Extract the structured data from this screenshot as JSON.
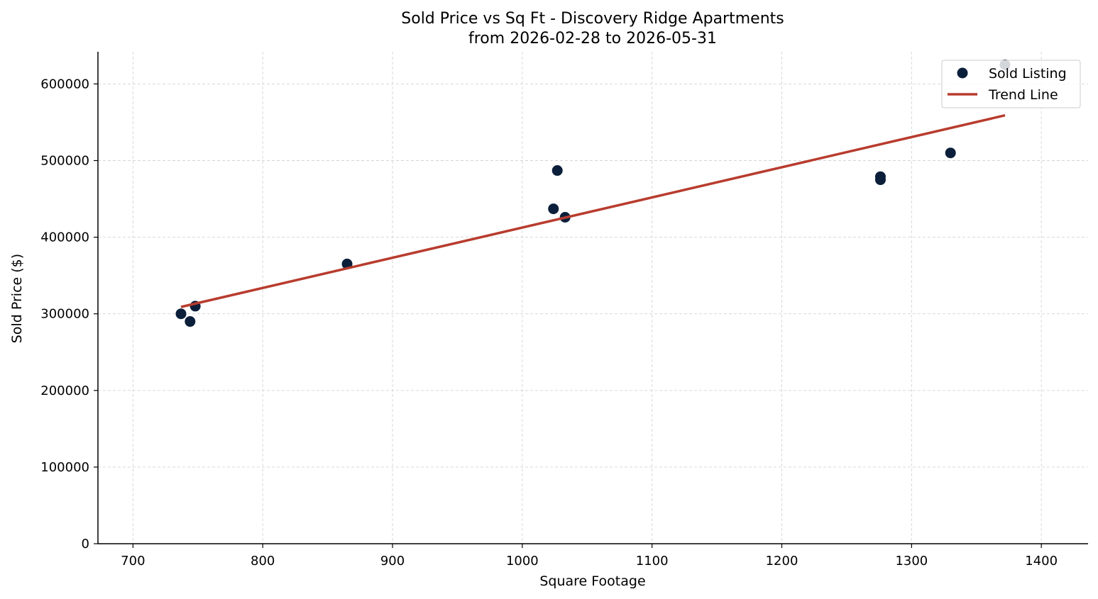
{
  "chart_data": {
    "type": "scatter",
    "title": "Sold Price vs Sq Ft - Discovery Ridge Apartments",
    "subtitle": "from 2026-02-28 to 2026-05-31",
    "xlabel": "Square Footage",
    "ylabel": "Sold Price ($)",
    "xlim": [
      673,
      1436
    ],
    "ylim": [
      0,
      642000
    ],
    "xticks": [
      700,
      800,
      900,
      1000,
      1100,
      1200,
      1300,
      1400
    ],
    "yticks": [
      0,
      100000,
      200000,
      300000,
      400000,
      500000,
      600000
    ],
    "grid": true,
    "legend_position": "top-right",
    "series": [
      {
        "name": "Sold Listing",
        "kind": "scatter",
        "color": "#0b1f3a",
        "points": [
          {
            "x": 737,
            "y": 300000
          },
          {
            "x": 744,
            "y": 290000
          },
          {
            "x": 748,
            "y": 310000
          },
          {
            "x": 865,
            "y": 365000
          },
          {
            "x": 1024,
            "y": 437000
          },
          {
            "x": 1027,
            "y": 487000
          },
          {
            "x": 1033,
            "y": 426000
          },
          {
            "x": 1276,
            "y": 479000
          },
          {
            "x": 1276,
            "y": 475000
          },
          {
            "x": 1330,
            "y": 510000
          },
          {
            "x": 1372,
            "y": 625000
          }
        ]
      },
      {
        "name": "Trend Line",
        "kind": "line",
        "color": "#b83c2e",
        "points": [
          {
            "x": 737,
            "y": 309000
          },
          {
            "x": 1372,
            "y": 559000
          }
        ]
      }
    ]
  }
}
